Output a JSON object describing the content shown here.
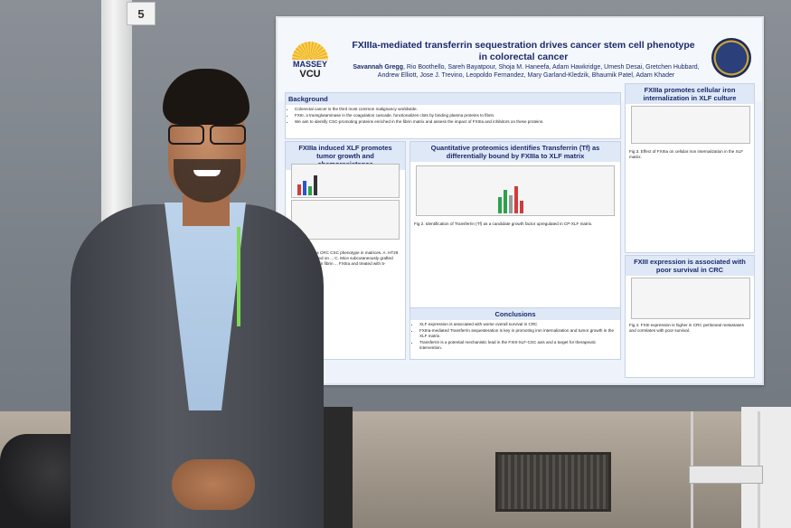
{
  "booth_number": "5",
  "poster": {
    "title_line1": "FXIIIa-mediated transferrin sequestration drives cancer stem cell phenotype",
    "title_line2": "in colorectal cancer",
    "first_author": "Savannah Gregg",
    "authors": "Rio Boothello, Sareh Bayatpour, Shoja M. Haneefa, Adam Hawkridge, Umesh Desai, Gretchen Hubbard, Andrew Elliott, Jose J. Trevino, Leopoldo Fernandez, Mary Garland-Kledzik, Bhaumik Patel, Adam Khader",
    "logo_massey": "MASSEY",
    "logo_vcu": "VCU",
    "background": {
      "heading": "Background",
      "bullets": [
        "Colorectal cancer is the third most common malignancy worldwide.",
        "FXIII, a transglutaminase in the coagulation cascade, functionalizes clots by binding plasma proteins to fibrin.",
        "We aim to identify CSC-promoting proteins enriched in the fibrin matrix and assess the impact of FXIIIa and inhibitors on these proteins."
      ]
    },
    "left_section": {
      "heading": "FXIIIa induced XLF promotes tumor growth and chemoresistance",
      "caption": "FXIIIa promotes CRC CSC phenotype in matrices. A. HT29 spheroids counted on ... C. Mice subcutaneously grafted with HT-29 cells in fibrin ... FXIIIa and treated with 5-fluorouracil"
    },
    "middle_section": {
      "heading": "Quantitative proteomics identifies Transferrin (Tf) as differentially bound by FXIIIa to XLF matrix",
      "caption": "Fig 2. Identification of Transferrin (Tf) as a candidate growth factor upregulated in CP-XLF matrix."
    },
    "right_top_section": {
      "heading": "FXIIIa promotes cellular iron internalization in XLF culture",
      "caption": "Fig 3. Effect of FXIIIa on cellular iron internalization in the XLF matrix."
    },
    "right_bottom_section": {
      "heading": "FXIII expression is associated with poor survival in CRC",
      "caption": "Fig 4. FXIII expression is higher in CRC peritoneal metastases and correlates with poor survival."
    },
    "conclusions": {
      "heading": "Conclusions",
      "bullets": [
        "XLF expression is associated with worse overall survival in CRC",
        "FXIIIa-mediated Transferrin sequesteration is key in promoting iron internalization and tumor growth in the XLF matrix.",
        "Transferrin is a potential mechanistic lead in the FXIII-XLF-CSC axis and a target for therapeutic intervention."
      ]
    }
  },
  "colors": {
    "poster_bg": "#eef3fb",
    "title": "#1a2a6c",
    "jacket": "#4a4e54",
    "shirt": "#a9c3e0",
    "lanyard": "#7ed957"
  }
}
